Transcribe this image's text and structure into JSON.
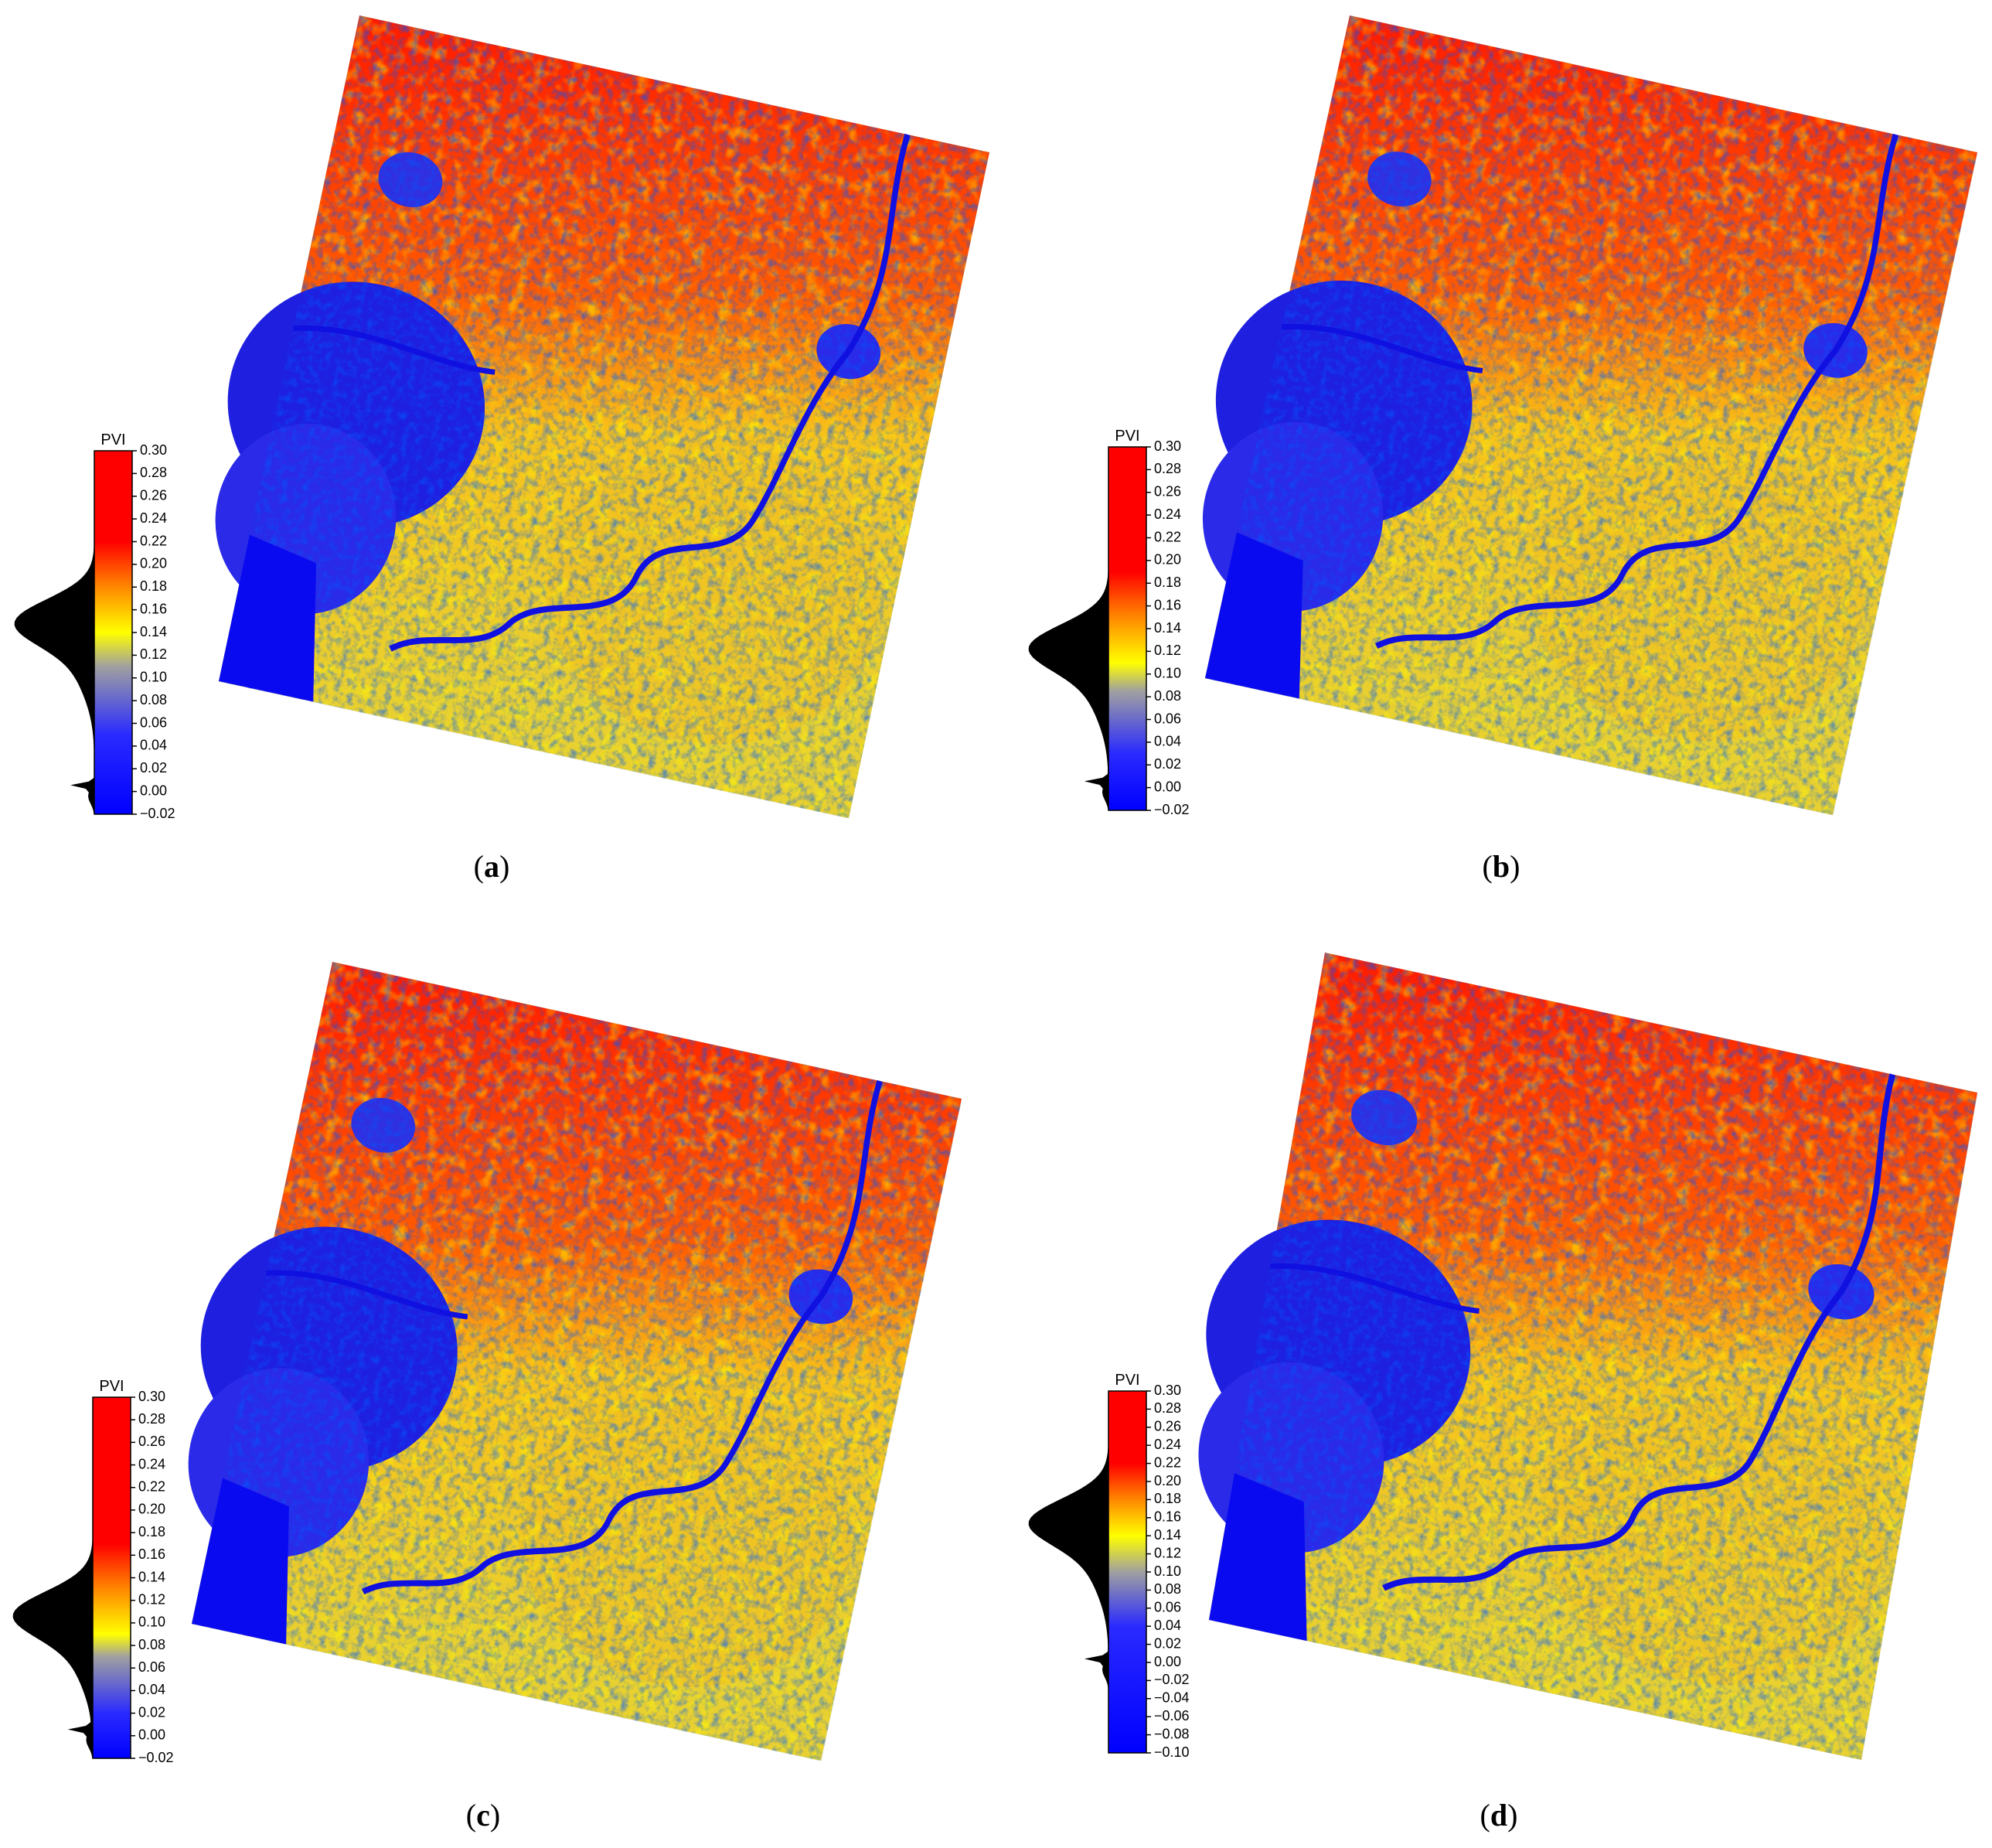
{
  "chart_data": [
    {
      "type": "colorbar",
      "label": "PVI",
      "caption": "(a)",
      "ylim": [
        -0.02,
        0.3
      ],
      "yticks": [
        {
          "value": 0.3,
          "label": "0.30"
        },
        {
          "value": 0.28,
          "label": "0.28"
        },
        {
          "value": 0.26,
          "label": "0.26"
        },
        {
          "value": 0.24,
          "label": "0.24"
        },
        {
          "value": 0.22,
          "label": "0.22"
        },
        {
          "value": 0.2,
          "label": "0.20"
        },
        {
          "value": 0.18,
          "label": "0.18"
        },
        {
          "value": 0.16,
          "label": "0.16"
        },
        {
          "value": 0.14,
          "label": "0.14"
        },
        {
          "value": 0.12,
          "label": "0.12"
        },
        {
          "value": 0.1,
          "label": "0.10"
        },
        {
          "value": 0.08,
          "label": "0.08"
        },
        {
          "value": 0.06,
          "label": "0.06"
        },
        {
          "value": 0.04,
          "label": "0.04"
        },
        {
          "value": 0.02,
          "label": "0.02"
        },
        {
          "value": 0,
          "label": "0.00"
        },
        {
          "value": -0.02,
          "label": "−0.02"
        }
      ],
      "colormap": [
        {
          "value": -0.02,
          "color": "#0000ff"
        },
        {
          "value": 0.05,
          "color": "#2a2aff"
        },
        {
          "value": 0.11,
          "color": "#a0a0a0"
        },
        {
          "value": 0.14,
          "color": "#ffff00"
        },
        {
          "value": 0.18,
          "color": "#ff8800"
        },
        {
          "value": 0.22,
          "color": "#ff0000"
        }
      ]
    },
    {
      "type": "colorbar",
      "label": "PVI",
      "caption": "(b)",
      "ylim": [
        -0.02,
        0.3
      ],
      "yticks": [
        {
          "value": 0.3,
          "label": "0.30"
        },
        {
          "value": 0.28,
          "label": "0.28"
        },
        {
          "value": 0.26,
          "label": "0.26"
        },
        {
          "value": 0.24,
          "label": "0.24"
        },
        {
          "value": 0.22,
          "label": "0.22"
        },
        {
          "value": 0.2,
          "label": "0.20"
        },
        {
          "value": 0.18,
          "label": "0.18"
        },
        {
          "value": 0.16,
          "label": "0.16"
        },
        {
          "value": 0.14,
          "label": "0.14"
        },
        {
          "value": 0.12,
          "label": "0.12"
        },
        {
          "value": 0.1,
          "label": "0.10"
        },
        {
          "value": 0.08,
          "label": "0.08"
        },
        {
          "value": 0.06,
          "label": "0.06"
        },
        {
          "value": 0.04,
          "label": "0.04"
        },
        {
          "value": 0.02,
          "label": "0.02"
        },
        {
          "value": 0,
          "label": "0.00"
        },
        {
          "value": -0.02,
          "label": "−0.02"
        }
      ],
      "colormap": [
        {
          "value": -0.02,
          "color": "#0000ff"
        },
        {
          "value": 0.03,
          "color": "#2a2aff"
        },
        {
          "value": 0.085,
          "color": "#a0a0a0"
        },
        {
          "value": 0.11,
          "color": "#ffff00"
        },
        {
          "value": 0.15,
          "color": "#ff8800"
        },
        {
          "value": 0.19,
          "color": "#ff0000"
        }
      ]
    },
    {
      "type": "colorbar",
      "label": "PVI",
      "caption": "(c)",
      "ylim": [
        -0.02,
        0.3
      ],
      "yticks": [
        {
          "value": 0.3,
          "label": "0.30"
        },
        {
          "value": 0.28,
          "label": "0.28"
        },
        {
          "value": 0.26,
          "label": "0.26"
        },
        {
          "value": 0.24,
          "label": "0.24"
        },
        {
          "value": 0.22,
          "label": "0.22"
        },
        {
          "value": 0.2,
          "label": "0.20"
        },
        {
          "value": 0.18,
          "label": "0.18"
        },
        {
          "value": 0.16,
          "label": "0.16"
        },
        {
          "value": 0.14,
          "label": "0.14"
        },
        {
          "value": 0.12,
          "label": "0.12"
        },
        {
          "value": 0.1,
          "label": "0.10"
        },
        {
          "value": 0.08,
          "label": "0.08"
        },
        {
          "value": 0.06,
          "label": "0.06"
        },
        {
          "value": 0.04,
          "label": "0.04"
        },
        {
          "value": 0.02,
          "label": "0.02"
        },
        {
          "value": 0,
          "label": "0.00"
        },
        {
          "value": -0.02,
          "label": "−0.02"
        }
      ],
      "colormap": [
        {
          "value": -0.02,
          "color": "#0000ff"
        },
        {
          "value": 0.02,
          "color": "#2a2aff"
        },
        {
          "value": 0.07,
          "color": "#a0a0a0"
        },
        {
          "value": 0.09,
          "color": "#ffff00"
        },
        {
          "value": 0.13,
          "color": "#ff8800"
        },
        {
          "value": 0.17,
          "color": "#ff0000"
        }
      ]
    },
    {
      "type": "colorbar",
      "label": "PVI",
      "caption": "(d)",
      "ylim": [
        -0.1,
        0.3
      ],
      "yticks": [
        {
          "value": 0.3,
          "label": "0.30"
        },
        {
          "value": 0.28,
          "label": "0.28"
        },
        {
          "value": 0.26,
          "label": "0.26"
        },
        {
          "value": 0.24,
          "label": "0.24"
        },
        {
          "value": 0.22,
          "label": "0.22"
        },
        {
          "value": 0.2,
          "label": "0.20"
        },
        {
          "value": 0.18,
          "label": "0.18"
        },
        {
          "value": 0.16,
          "label": "0.16"
        },
        {
          "value": 0.14,
          "label": "0.14"
        },
        {
          "value": 0.12,
          "label": "0.12"
        },
        {
          "value": 0.1,
          "label": "0.10"
        },
        {
          "value": 0.08,
          "label": "0.08"
        },
        {
          "value": 0.06,
          "label": "0.06"
        },
        {
          "value": 0.04,
          "label": "0.04"
        },
        {
          "value": 0.02,
          "label": "0.02"
        },
        {
          "value": 0,
          "label": "0.00"
        },
        {
          "value": -0.02,
          "label": "−0.02"
        },
        {
          "value": -0.04,
          "label": "−0.04"
        },
        {
          "value": -0.06,
          "label": "−0.06"
        },
        {
          "value": -0.08,
          "label": "−0.08"
        },
        {
          "value": -0.1,
          "label": "−0.10"
        }
      ],
      "colormap": [
        {
          "value": -0.1,
          "color": "#0000ff"
        },
        {
          "value": 0.04,
          "color": "#2a2aff"
        },
        {
          "value": 0.1,
          "color": "#a0a0a0"
        },
        {
          "value": 0.14,
          "color": "#ffff00"
        },
        {
          "value": 0.18,
          "color": "#ff8800"
        },
        {
          "value": 0.22,
          "color": "#ff0000"
        }
      ]
    }
  ]
}
